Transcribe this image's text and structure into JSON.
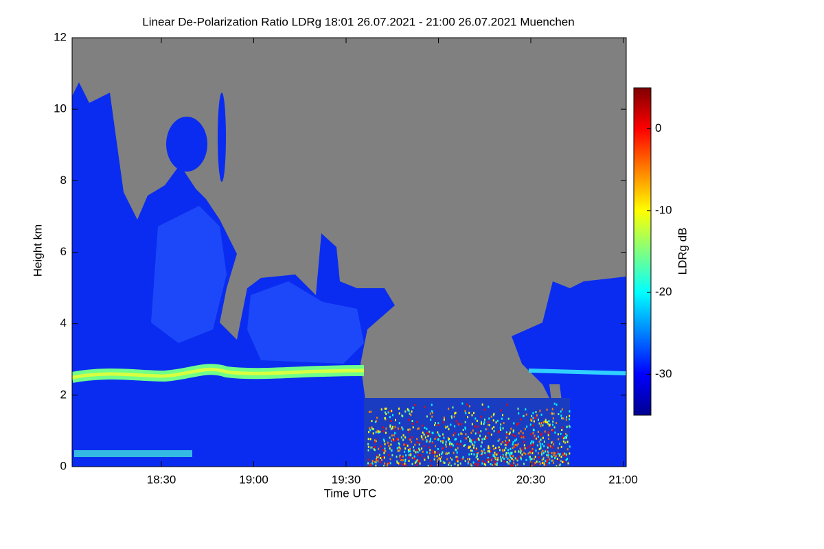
{
  "chart_data": {
    "type": "heatmap",
    "title": "Linear De-Polarization Ratio LDRg   18:01 26.07.2021 - 21:00 26.07.2021 Muenchen",
    "x_label": "Time UTC",
    "y_label": "Height km",
    "colorbar_label": "LDRg dB",
    "xlim": [
      1081,
      1261
    ],
    "xticks": [
      {
        "value": 1110,
        "label": "18:30"
      },
      {
        "value": 1140,
        "label": "19:00"
      },
      {
        "value": 1170,
        "label": "19:30"
      },
      {
        "value": 1200,
        "label": "20:00"
      },
      {
        "value": 1230,
        "label": "20:30"
      },
      {
        "value": 1260,
        "label": "21:00"
      }
    ],
    "ylim": [
      0,
      12
    ],
    "yticks": [
      0,
      2,
      4,
      6,
      8,
      10,
      12
    ],
    "zlim": [
      -35,
      5
    ],
    "zticks": [
      0,
      -10,
      -20,
      -30
    ],
    "colormap": [
      "#00008f",
      "#0000ff",
      "#0080ff",
      "#00ffff",
      "#80ff80",
      "#ffff00",
      "#ff8000",
      "#ff0000",
      "#800000"
    ],
    "nodata_color": "#808080"
  }
}
